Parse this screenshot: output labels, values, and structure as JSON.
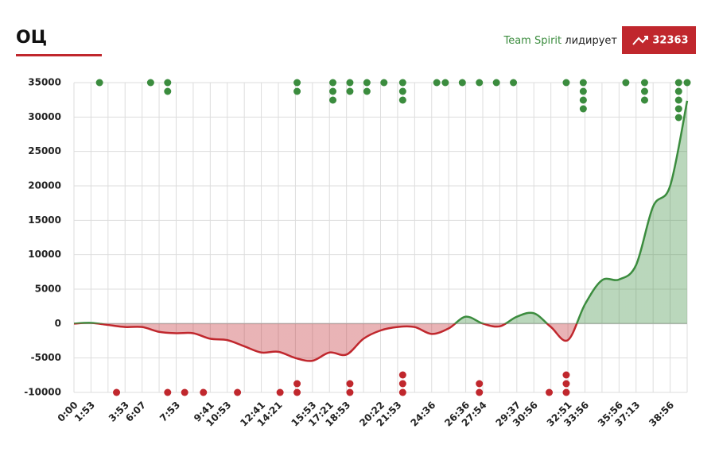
{
  "header": {
    "title": "ОЦ",
    "leader": "Team Spirit",
    "status": "лидирует",
    "lead_value": 32363
  },
  "chart_data": {
    "type": "line",
    "categories": [
      "0:00",
      "1:53",
      null,
      "3:53",
      "6:07",
      null,
      "7:53",
      null,
      "9:41",
      "10:53",
      null,
      "12:41",
      "14:21",
      null,
      "15:53",
      "17:21",
      "18:53",
      null,
      "20:22",
      "21:53",
      null,
      "24:36",
      null,
      "26:36",
      "27:54",
      null,
      "29:37",
      "30:56",
      null,
      "32:51",
      "33:56",
      null,
      "35:56",
      "37:13",
      null,
      "38:56",
      null
    ],
    "values": [
      0,
      100,
      -200,
      -500,
      -500,
      -1200,
      -1400,
      -1400,
      -2200,
      -2400,
      -3300,
      -4200,
      -4100,
      -5000,
      -5400,
      -4200,
      -4500,
      -2200,
      -1000,
      -500,
      -500,
      -1500,
      -700,
      1000,
      0,
      -400,
      1000,
      1500,
      -500,
      -2400,
      2800,
      6300,
      6400,
      8500,
      17000,
      20000,
      32363
    ],
    "ylim": [
      -10000,
      35000
    ],
    "yticks": [
      -10000,
      -5000,
      0,
      5000,
      10000,
      15000,
      20000,
      25000,
      30000,
      35000
    ],
    "grid": true,
    "positive_color": "#3b8c3e",
    "negative_color": "#c0272d",
    "top_events": {
      "x": [
        1.5,
        4.5,
        5.5,
        13.1,
        15.2,
        16.2,
        17.2,
        18.2,
        19.3,
        21.3,
        21.8,
        22.8,
        23.8,
        24.8,
        25.8,
        28.9,
        29.9,
        32.4,
        33.5,
        35.5,
        36
      ],
      "count": [
        1,
        1,
        2,
        2,
        3,
        2,
        2,
        1,
        3,
        1,
        1,
        1,
        1,
        1,
        1,
        1,
        4,
        1,
        3,
        5,
        1
      ]
    },
    "bottom_events": {
      "x": [
        2.5,
        5.5,
        6.5,
        7.6,
        9.6,
        12.1,
        13.1,
        16.2,
        19.3,
        23.8,
        27.9,
        28.9
      ],
      "count": [
        1,
        1,
        1,
        1,
        1,
        1,
        2,
        2,
        3,
        2,
        1,
        3
      ]
    }
  }
}
